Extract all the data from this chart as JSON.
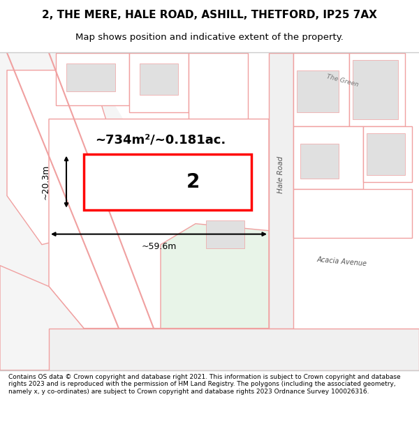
{
  "title_line1": "2, THE MERE, HALE ROAD, ASHILL, THETFORD, IP25 7AX",
  "title_line2": "Map shows position and indicative extent of the property.",
  "footer_text": "Contains OS data © Crown copyright and database right 2021. This information is subject to Crown copyright and database rights 2023 and is reproduced with the permission of HM Land Registry. The polygons (including the associated geometry, namely x, y co-ordinates) are subject to Crown copyright and database rights 2023 Ordnance Survey 100026316.",
  "area_label": "~734m²/~0.181ac.",
  "width_label": "~59.6m",
  "height_label": "~20.3m",
  "plot_number": "2",
  "map_bg": "#ffffff",
  "road_color": "#f0a0a0",
  "road_fill": "#f8d8d8",
  "plot_outline_color": "#ff0000",
  "plot_fill": "#ffffff",
  "building_fill": "#e0e0e0",
  "green_fill": "#e8f4e8",
  "hale_road_label": "Hale Road",
  "acacia_label": "Acacia Avenue",
  "the_green_label": "The Green"
}
